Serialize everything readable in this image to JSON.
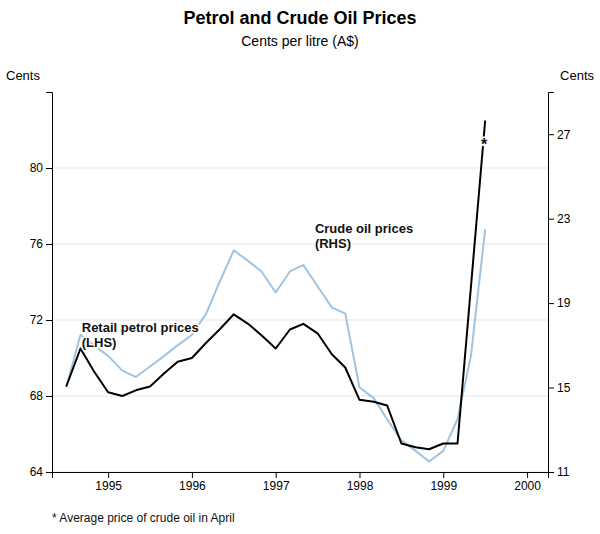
{
  "chart_data": {
    "type": "line",
    "title": "Petrol and Crude Oil Prices",
    "subtitle": "Cents per litre (A$)",
    "ylabel": "Cents",
    "y2label": "Cents",
    "footnote": "* Average price of crude oil in April",
    "annotations": [
      "Retail petrol prices\n(LHS)",
      "Crude oil prices\n(RHS)",
      "*"
    ],
    "xlim": [
      1994.33,
      2000.25
    ],
    "xticks": [
      1995,
      1996,
      1997,
      1998,
      1999,
      2000
    ],
    "ylim": [
      64,
      84
    ],
    "yticks": [
      64,
      68,
      72,
      76,
      80
    ],
    "y2lim": [
      11,
      29
    ],
    "y2ticks": [
      11,
      15,
      19,
      23,
      27
    ],
    "grid": true,
    "series": [
      {
        "axis": "y2",
        "color": "#a0c4e0",
        "x": [
          1994.5,
          1994.67,
          1994.83,
          1995.0,
          1995.17,
          1995.33,
          1995.5,
          1995.67,
          1995.83,
          1996.0,
          1996.17,
          1996.33,
          1996.5,
          1996.67,
          1996.83,
          1997.0,
          1997.17,
          1997.33,
          1997.5,
          1997.67,
          1997.83,
          1998.0,
          1998.17,
          1998.33,
          1998.5,
          1998.67,
          1998.83,
          1999.0,
          1999.17,
          1999.33,
          1999.5
        ],
        "values": [
          15.0,
          17.5,
          17.0,
          16.5,
          15.8,
          15.5,
          16.0,
          16.5,
          17.0,
          17.5,
          18.5,
          20.0,
          21.5,
          21.0,
          20.5,
          19.5,
          20.5,
          20.8,
          19.8,
          18.8,
          18.5,
          15.0,
          14.5,
          13.5,
          12.5,
          12.0,
          11.5,
          12.0,
          13.5,
          16.5,
          22.5
        ]
      },
      {
        "axis": "y",
        "color": "#000000",
        "x": [
          1994.5,
          1994.67,
          1994.83,
          1995.0,
          1995.17,
          1995.33,
          1995.5,
          1995.67,
          1995.83,
          1996.0,
          1996.17,
          1996.33,
          1996.5,
          1996.67,
          1996.83,
          1997.0,
          1997.17,
          1997.33,
          1997.5,
          1997.67,
          1997.83,
          1998.0,
          1998.17,
          1998.33,
          1998.5,
          1998.67,
          1998.83,
          1999.0,
          1999.17,
          1999.5
        ],
        "values": [
          68.5,
          70.5,
          69.3,
          68.2,
          68.0,
          68.3,
          68.5,
          69.2,
          69.8,
          70.0,
          70.8,
          71.5,
          72.3,
          71.8,
          71.2,
          70.5,
          71.5,
          71.8,
          71.3,
          70.2,
          69.5,
          67.8,
          67.7,
          67.5,
          65.5,
          65.3,
          65.2,
          65.5,
          65.5,
          82.5
        ]
      }
    ]
  }
}
